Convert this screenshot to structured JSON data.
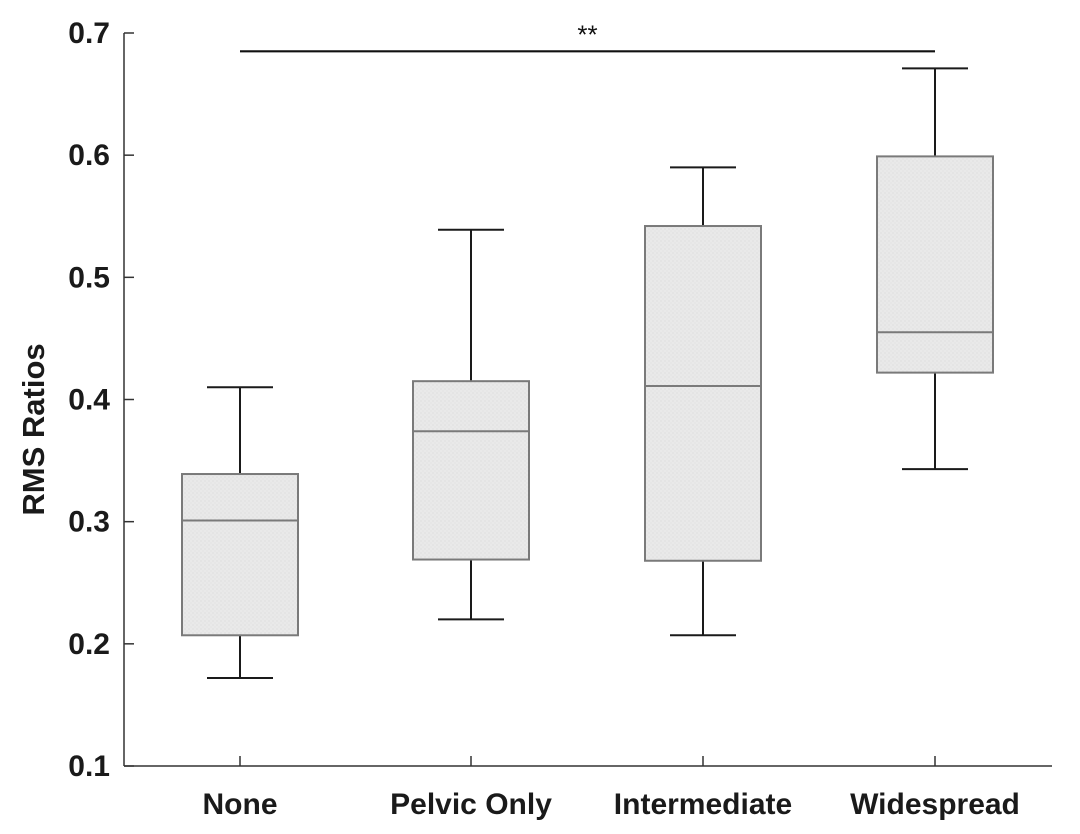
{
  "chart_data": {
    "type": "box",
    "title": "",
    "xlabel": "",
    "ylabel": "RMS Ratios",
    "ylim": [
      0.1,
      0.7
    ],
    "yticks": [
      0.1,
      0.2,
      0.3,
      0.4,
      0.5,
      0.6,
      0.7
    ],
    "ytick_labels": [
      "0.1",
      "0.2",
      "0.3",
      "0.4",
      "0.5",
      "0.6",
      "0.7"
    ],
    "categories": [
      "None",
      "Pelvic Only",
      "Intermediate",
      "Widespread"
    ],
    "boxes": [
      {
        "category": "None",
        "whisker_low": 0.172,
        "q1": 0.207,
        "median": 0.301,
        "q3": 0.339,
        "whisker_high": 0.41
      },
      {
        "category": "Pelvic Only",
        "whisker_low": 0.22,
        "q1": 0.269,
        "median": 0.374,
        "q3": 0.415,
        "whisker_high": 0.539
      },
      {
        "category": "Intermediate",
        "whisker_low": 0.207,
        "q1": 0.268,
        "median": 0.411,
        "q3": 0.542,
        "whisker_high": 0.59
      },
      {
        "category": "Widespread",
        "whisker_low": 0.343,
        "q1": 0.422,
        "median": 0.455,
        "q3": 0.599,
        "whisker_high": 0.671
      }
    ],
    "significance": {
      "from": "None",
      "to": "Widespread",
      "y": 0.685,
      "label": "**"
    },
    "grid": false,
    "legend": "none",
    "colors": {
      "box_fill": "#e8e8e8",
      "box_edge": "#7a7a7a",
      "median_line": "#7a7a7a",
      "whisker": "#1a1a1a",
      "axis": "#333333",
      "text": "#1a1a1a"
    }
  }
}
